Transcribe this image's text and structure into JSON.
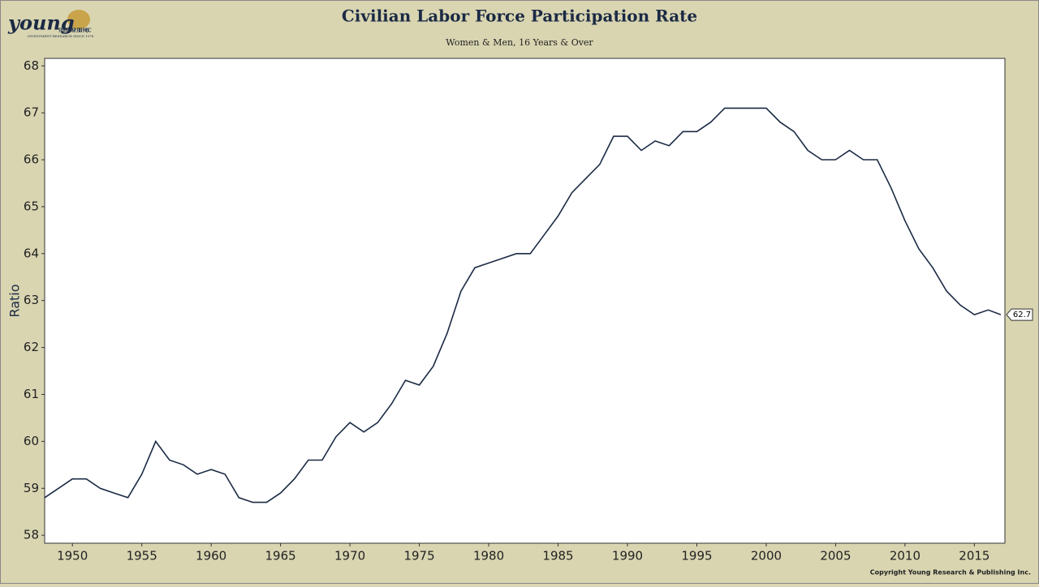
{
  "brand": {
    "name": "young",
    "line1": "RESEARCH & PUBLISHING, INC.",
    "line2": "INVESTMENT RESEARCH SINCE 1978"
  },
  "copyright": "Copyright Young Research & Publishing Inc.",
  "chart_data": {
    "type": "line",
    "title": "Civilian Labor Force Participation Rate",
    "subtitle": "Women & Men, 16 Years & Over",
    "y_label": "Ratio",
    "x": [
      1948,
      1949,
      1950,
      1951,
      1952,
      1953,
      1954,
      1955,
      1956,
      1957,
      1958,
      1959,
      1960,
      1961,
      1962,
      1963,
      1964,
      1965,
      1966,
      1967,
      1968,
      1969,
      1970,
      1971,
      1972,
      1973,
      1974,
      1975,
      1976,
      1977,
      1978,
      1979,
      1980,
      1981,
      1982,
      1983,
      1984,
      1985,
      1986,
      1987,
      1988,
      1989,
      1990,
      1991,
      1992,
      1993,
      1994,
      1995,
      1996,
      1997,
      1998,
      1999,
      2000,
      2001,
      2002,
      2003,
      2004,
      2005,
      2006,
      2007,
      2008,
      2009,
      2010,
      2011,
      2012,
      2013,
      2014,
      2015,
      2016,
      2016.9
    ],
    "series": [
      {
        "name": "Ratio",
        "color": "#1b2a44",
        "values": [
          58.8,
          59.0,
          59.2,
          59.2,
          59.0,
          58.9,
          58.8,
          59.3,
          60.0,
          59.6,
          59.5,
          59.3,
          59.4,
          59.3,
          58.8,
          58.7,
          58.7,
          58.9,
          59.2,
          59.6,
          59.6,
          60.1,
          60.4,
          60.2,
          60.4,
          60.8,
          61.3,
          61.2,
          61.6,
          62.3,
          63.2,
          63.7,
          63.8,
          63.9,
          64.0,
          64.0,
          64.4,
          64.8,
          65.3,
          65.6,
          65.9,
          66.5,
          66.5,
          66.2,
          66.4,
          66.3,
          66.6,
          66.6,
          66.8,
          67.1,
          67.1,
          67.1,
          67.1,
          66.8,
          66.6,
          66.2,
          66.0,
          66.0,
          66.2,
          66.0,
          66.0,
          65.4,
          64.7,
          64.1,
          63.7,
          63.2,
          62.9,
          62.7,
          62.8,
          62.7
        ],
        "last_label": "62.7"
      }
    ],
    "xlim": [
      1948,
      2017.2
    ],
    "xticks": [
      1950,
      1955,
      1960,
      1965,
      1970,
      1975,
      1980,
      1985,
      1990,
      1995,
      2000,
      2005,
      2010,
      2015
    ],
    "ylim": [
      57.83,
      68.16
    ],
    "yticks": [
      58,
      59,
      60,
      61,
      62,
      63,
      64,
      65,
      66,
      67,
      68
    ],
    "grid": false
  }
}
